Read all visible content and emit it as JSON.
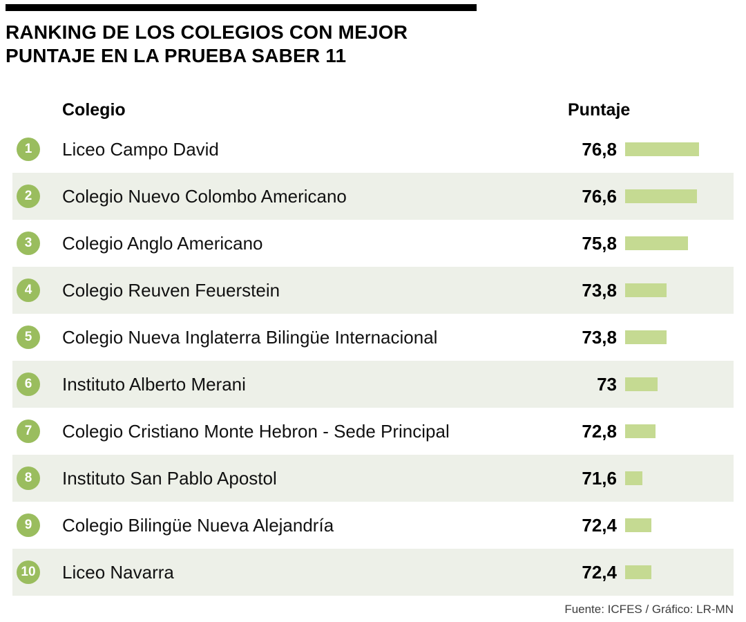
{
  "header": {
    "title_line1": "RANKING DE LOS COLEGIOS CON MEJOR",
    "title_line2": "PUNTAJE EN LA PRUEBA SABER 11"
  },
  "columns": {
    "school": "Colegio",
    "score": "Puntaje"
  },
  "footer": {
    "source": "Fuente: ICFES / Gráfico: LR-MN"
  },
  "colors": {
    "rank_circle": "#9abd5e",
    "bar": "#c5da92",
    "row_alt_bg": "#edf0e8"
  },
  "chart_data": {
    "type": "bar",
    "orientation": "horizontal",
    "title": "Ranking de los colegios con mejor puntaje en la Prueba Saber 11",
    "categories": [
      "Liceo Campo David",
      "Colegio Nuevo Colombo Americano",
      "Colegio Anglo Americano",
      "Colegio Reuven Feuerstein",
      "Colegio Nueva Inglaterra Bilingüe Internacional",
      "Instituto Alberto Merani",
      "Colegio Cristiano Monte Hebron - Sede Principal",
      "Instituto San Pablo Apostol",
      "Colegio Bilingüe Nueva Alejandría",
      "Liceo Navarra"
    ],
    "ranks": [
      1,
      2,
      3,
      4,
      5,
      6,
      7,
      8,
      9,
      10
    ],
    "values": [
      76.8,
      76.6,
      75.8,
      73.8,
      73.8,
      73,
      72.8,
      71.6,
      72.4,
      72.4
    ],
    "value_labels": [
      "76,8",
      "76,6",
      "75,8",
      "73,8",
      "73,8",
      "73",
      "72,8",
      "71,6",
      "72,4",
      "72,4"
    ],
    "xlabel": "Puntaje",
    "ylabel": "Colegio",
    "xlim": [
      70,
      77
    ],
    "grid": false,
    "legend": false,
    "source": "Fuente: ICFES / Gráfico: LR-MN"
  }
}
